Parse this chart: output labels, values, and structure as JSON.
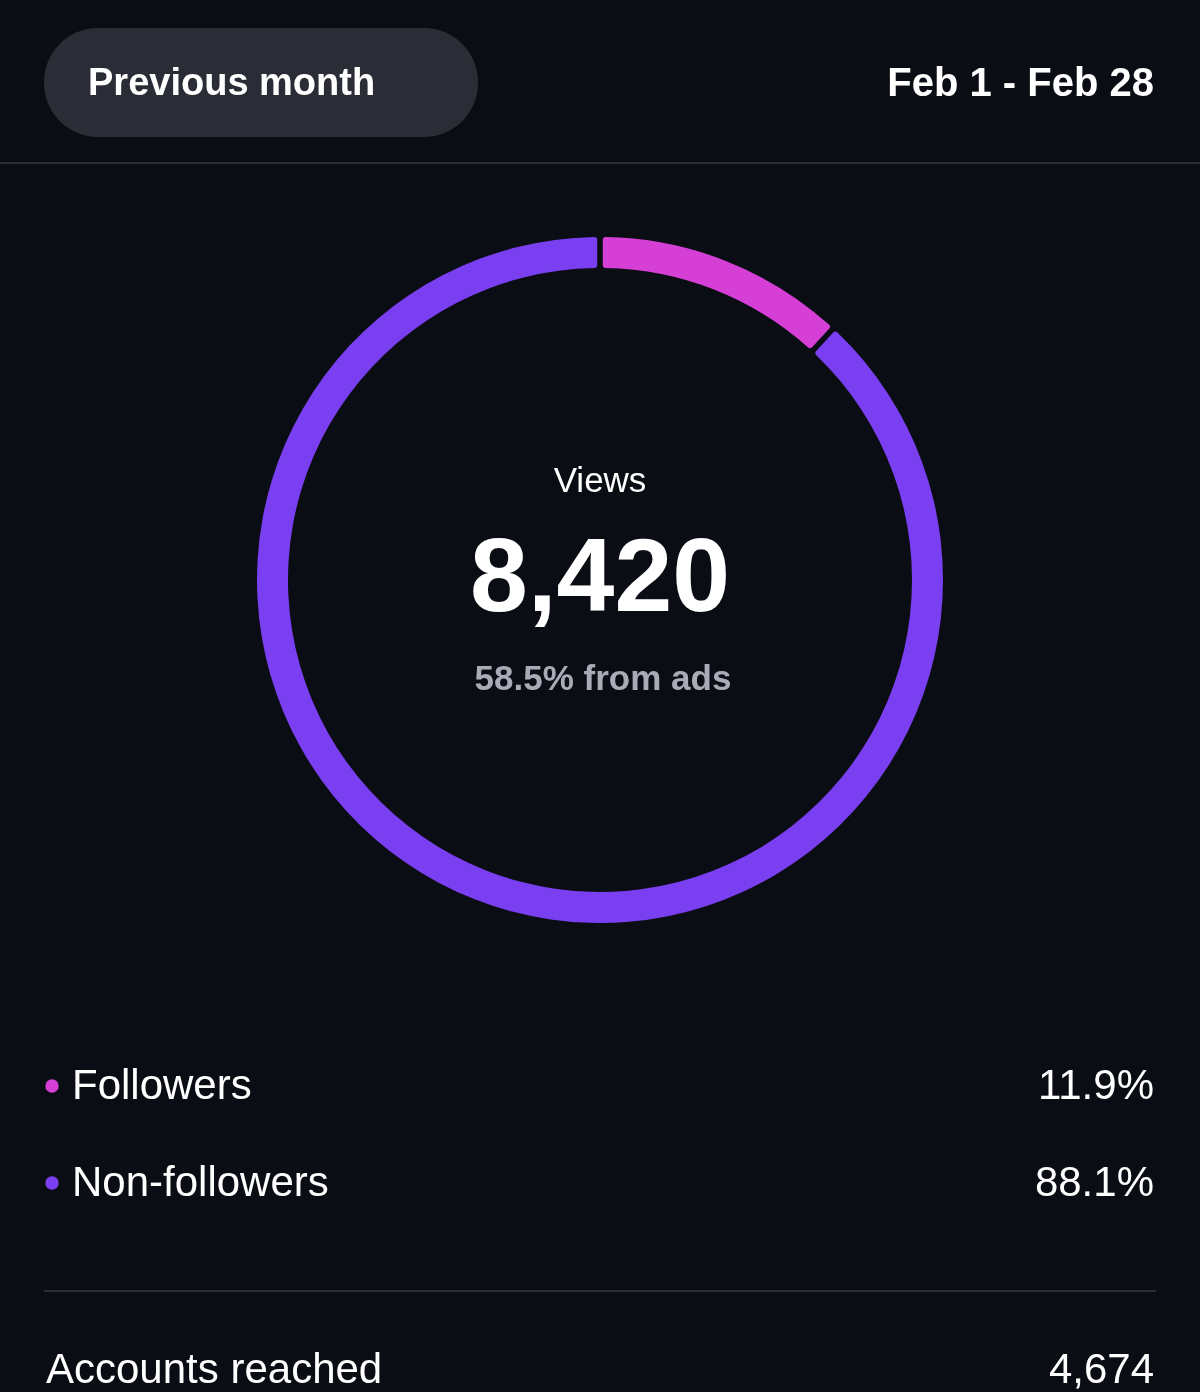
{
  "chart_data": {
    "type": "donut",
    "title": "Views",
    "subtitle": "58.5% from ads",
    "categories": [
      "Followers",
      "Non-followers"
    ],
    "values": [
      11.9,
      88.1
    ],
    "colors": [
      "#d63fd6",
      "#7b3ff2"
    ],
    "value_labels": [
      "11.9%",
      "88.1%"
    ],
    "legend": "bottom",
    "annotations": [
      "Previous month",
      "Feb 1 - Feb 28",
      "8,420",
      "Accounts reached",
      "4,674"
    ]
  }
}
